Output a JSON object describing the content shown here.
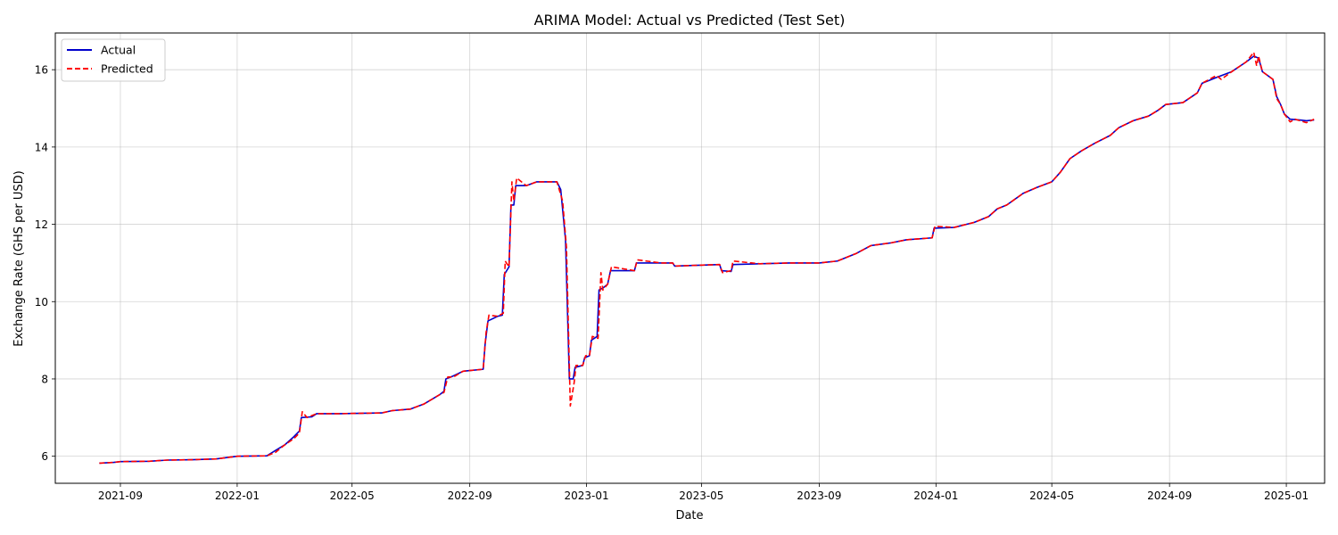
{
  "chart_data": {
    "type": "line",
    "title": "ARIMA Model: Actual vs Predicted (Test Set)",
    "xlabel": "Date",
    "ylabel": "Exchange Rate (GHS per USD)",
    "xlim": [
      "2021-06-25",
      "2025-02-10"
    ],
    "ylim": [
      5.3,
      16.95
    ],
    "x_ticks": [
      "2021-09-01",
      "2022-01-01",
      "2022-05-01",
      "2022-09-01",
      "2023-01-01",
      "2023-05-01",
      "2023-09-01",
      "2024-01-01",
      "2024-05-01",
      "2024-09-01",
      "2025-01-01"
    ],
    "x_tick_labels": [
      "2021-09",
      "2022-01",
      "2022-05",
      "2022-09",
      "2023-01",
      "2023-05",
      "2023-09",
      "2024-01",
      "2024-05",
      "2024-09",
      "2025-01"
    ],
    "y_ticks": [
      6,
      8,
      10,
      12,
      14,
      16
    ],
    "y_tick_labels": [
      "6",
      "8",
      "10",
      "12",
      "14",
      "16"
    ],
    "grid": true,
    "legend_position": "top-left",
    "series": [
      {
        "name": "Actual",
        "color": "#0000cc",
        "style": "solid",
        "points": [
          [
            "2021-08-10",
            5.82
          ],
          [
            "2021-08-25",
            5.84
          ],
          [
            "2021-09-01",
            5.86
          ],
          [
            "2021-10-01",
            5.87
          ],
          [
            "2021-10-20",
            5.9
          ],
          [
            "2021-11-15",
            5.91
          ],
          [
            "2021-12-10",
            5.93
          ],
          [
            "2022-01-01",
            6.0
          ],
          [
            "2022-02-01",
            6.01
          ],
          [
            "2022-02-10",
            6.15
          ],
          [
            "2022-02-20",
            6.3
          ],
          [
            "2022-03-01",
            6.5
          ],
          [
            "2022-03-07",
            6.65
          ],
          [
            "2022-03-09",
            7.0
          ],
          [
            "2022-03-20",
            7.02
          ],
          [
            "2022-03-25",
            7.1
          ],
          [
            "2022-04-15",
            7.1
          ],
          [
            "2022-06-01",
            7.12
          ],
          [
            "2022-06-12",
            7.18
          ],
          [
            "2022-07-01",
            7.22
          ],
          [
            "2022-07-15",
            7.35
          ],
          [
            "2022-08-01",
            7.6
          ],
          [
            "2022-08-05",
            7.68
          ],
          [
            "2022-08-07",
            8.0
          ],
          [
            "2022-08-15",
            8.08
          ],
          [
            "2022-08-25",
            8.2
          ],
          [
            "2022-09-15",
            8.25
          ],
          [
            "2022-09-17",
            8.9
          ],
          [
            "2022-09-20",
            9.5
          ],
          [
            "2022-09-30",
            9.62
          ],
          [
            "2022-10-05",
            9.65
          ],
          [
            "2022-10-07",
            10.7
          ],
          [
            "2022-10-12",
            10.9
          ],
          [
            "2022-10-14",
            12.5
          ],
          [
            "2022-10-17",
            12.5
          ],
          [
            "2022-10-19",
            13.0
          ],
          [
            "2022-10-30",
            13.0
          ],
          [
            "2022-11-10",
            13.1
          ],
          [
            "2022-12-01",
            13.1
          ],
          [
            "2022-12-05",
            12.9
          ],
          [
            "2022-12-10",
            11.6
          ],
          [
            "2022-12-14",
            8.0
          ],
          [
            "2022-12-18",
            8.0
          ],
          [
            "2022-12-20",
            8.3
          ],
          [
            "2022-12-28",
            8.35
          ],
          [
            "2022-12-30",
            8.55
          ],
          [
            "2023-01-04",
            8.6
          ],
          [
            "2023-01-06",
            9.0
          ],
          [
            "2023-01-12",
            9.1
          ],
          [
            "2023-01-14",
            10.3
          ],
          [
            "2023-01-18",
            10.35
          ],
          [
            "2023-01-23",
            10.45
          ],
          [
            "2023-01-26",
            10.8
          ],
          [
            "2023-02-20",
            10.8
          ],
          [
            "2023-02-22",
            11.0
          ],
          [
            "2023-03-20",
            11.0
          ],
          [
            "2023-04-01",
            11.0
          ],
          [
            "2023-04-03",
            10.92
          ],
          [
            "2023-05-20",
            10.96
          ],
          [
            "2023-05-22",
            10.8
          ],
          [
            "2023-06-01",
            10.78
          ],
          [
            "2023-06-03",
            10.96
          ],
          [
            "2023-07-01",
            10.98
          ],
          [
            "2023-08-01",
            11.0
          ],
          [
            "2023-09-01",
            11.0
          ],
          [
            "2023-09-20",
            11.05
          ],
          [
            "2023-10-10",
            11.25
          ],
          [
            "2023-10-25",
            11.45
          ],
          [
            "2023-11-15",
            11.52
          ],
          [
            "2023-12-01",
            11.6
          ],
          [
            "2023-12-28",
            11.65
          ],
          [
            "2023-12-30",
            11.9
          ],
          [
            "2024-01-20",
            11.92
          ],
          [
            "2024-02-10",
            12.05
          ],
          [
            "2024-02-25",
            12.2
          ],
          [
            "2024-03-05",
            12.4
          ],
          [
            "2024-03-15",
            12.5
          ],
          [
            "2024-04-01",
            12.8
          ],
          [
            "2024-04-15",
            12.95
          ],
          [
            "2024-05-01",
            13.1
          ],
          [
            "2024-05-10",
            13.35
          ],
          [
            "2024-05-20",
            13.7
          ],
          [
            "2024-06-01",
            13.9
          ],
          [
            "2024-06-15",
            14.1
          ],
          [
            "2024-07-01",
            14.3
          ],
          [
            "2024-07-10",
            14.5
          ],
          [
            "2024-07-25",
            14.68
          ],
          [
            "2024-08-10",
            14.8
          ],
          [
            "2024-08-20",
            14.95
          ],
          [
            "2024-08-28",
            15.1
          ],
          [
            "2024-09-15",
            15.15
          ],
          [
            "2024-09-30",
            15.4
          ],
          [
            "2024-10-05",
            15.65
          ],
          [
            "2024-10-20",
            15.8
          ],
          [
            "2024-11-05",
            15.95
          ],
          [
            "2024-11-20",
            16.2
          ],
          [
            "2024-11-28",
            16.35
          ],
          [
            "2024-12-03",
            16.3
          ],
          [
            "2024-12-07",
            15.95
          ],
          [
            "2024-12-18",
            15.75
          ],
          [
            "2024-12-22",
            15.3
          ],
          [
            "2024-12-26",
            15.1
          ],
          [
            "2024-12-30",
            14.85
          ],
          [
            "2025-01-05",
            14.72
          ],
          [
            "2025-01-15",
            14.7
          ],
          [
            "2025-01-22",
            14.68
          ],
          [
            "2025-01-30",
            14.7
          ]
        ]
      },
      {
        "name": "Predicted",
        "color": "#ff0000",
        "style": "dashed",
        "points": [
          [
            "2021-08-10",
            5.82
          ],
          [
            "2021-08-25",
            5.84
          ],
          [
            "2021-09-01",
            5.86
          ],
          [
            "2021-10-01",
            5.87
          ],
          [
            "2021-10-20",
            5.9
          ],
          [
            "2021-11-15",
            5.91
          ],
          [
            "2021-12-10",
            5.93
          ],
          [
            "2022-01-01",
            6.0
          ],
          [
            "2022-02-01",
            6.01
          ],
          [
            "2022-02-10",
            6.1
          ],
          [
            "2022-02-20",
            6.3
          ],
          [
            "2022-03-01",
            6.45
          ],
          [
            "2022-03-07",
            6.6
          ],
          [
            "2022-03-10",
            7.15
          ],
          [
            "2022-03-15",
            7.0
          ],
          [
            "2022-03-25",
            7.1
          ],
          [
            "2022-04-15",
            7.1
          ],
          [
            "2022-06-01",
            7.12
          ],
          [
            "2022-06-12",
            7.18
          ],
          [
            "2022-07-01",
            7.22
          ],
          [
            "2022-07-15",
            7.35
          ],
          [
            "2022-08-01",
            7.6
          ],
          [
            "2022-08-05",
            7.65
          ],
          [
            "2022-08-09",
            8.05
          ],
          [
            "2022-08-15",
            8.05
          ],
          [
            "2022-08-25",
            8.2
          ],
          [
            "2022-09-15",
            8.25
          ],
          [
            "2022-09-18",
            9.2
          ],
          [
            "2022-09-21",
            9.65
          ],
          [
            "2022-09-30",
            9.62
          ],
          [
            "2022-10-06",
            9.7
          ],
          [
            "2022-10-08",
            11.05
          ],
          [
            "2022-10-12",
            10.9
          ],
          [
            "2022-10-15",
            13.1
          ],
          [
            "2022-10-17",
            12.6
          ],
          [
            "2022-10-20",
            13.2
          ],
          [
            "2022-10-30",
            13.0
          ],
          [
            "2022-11-10",
            13.1
          ],
          [
            "2022-12-01",
            13.1
          ],
          [
            "2022-12-07",
            12.6
          ],
          [
            "2022-12-11",
            11.4
          ],
          [
            "2022-12-15",
            7.3
          ],
          [
            "2022-12-19",
            7.9
          ],
          [
            "2022-12-21",
            8.35
          ],
          [
            "2022-12-28",
            8.35
          ],
          [
            "2022-12-31",
            8.6
          ],
          [
            "2023-01-04",
            8.6
          ],
          [
            "2023-01-07",
            9.1
          ],
          [
            "2023-01-13",
            9.05
          ],
          [
            "2023-01-16",
            10.75
          ],
          [
            "2023-01-18",
            10.3
          ],
          [
            "2023-01-23",
            10.45
          ],
          [
            "2023-01-27",
            10.9
          ],
          [
            "2023-02-20",
            10.8
          ],
          [
            "2023-02-23",
            11.08
          ],
          [
            "2023-03-20",
            11.0
          ],
          [
            "2023-04-01",
            11.0
          ],
          [
            "2023-04-03",
            10.92
          ],
          [
            "2023-05-20",
            10.96
          ],
          [
            "2023-05-23",
            10.75
          ],
          [
            "2023-06-01",
            10.8
          ],
          [
            "2023-06-03",
            11.05
          ],
          [
            "2023-07-01",
            10.98
          ],
          [
            "2023-08-01",
            11.0
          ],
          [
            "2023-09-01",
            11.0
          ],
          [
            "2023-09-20",
            11.05
          ],
          [
            "2023-10-10",
            11.25
          ],
          [
            "2023-10-25",
            11.45
          ],
          [
            "2023-11-15",
            11.52
          ],
          [
            "2023-12-01",
            11.6
          ],
          [
            "2023-12-28",
            11.65
          ],
          [
            "2023-12-31",
            11.95
          ],
          [
            "2024-01-20",
            11.92
          ],
          [
            "2024-02-10",
            12.05
          ],
          [
            "2024-02-25",
            12.2
          ],
          [
            "2024-03-05",
            12.4
          ],
          [
            "2024-03-15",
            12.5
          ],
          [
            "2024-04-01",
            12.8
          ],
          [
            "2024-04-15",
            12.95
          ],
          [
            "2024-05-01",
            13.1
          ],
          [
            "2024-05-10",
            13.35
          ],
          [
            "2024-05-20",
            13.7
          ],
          [
            "2024-06-01",
            13.9
          ],
          [
            "2024-06-15",
            14.1
          ],
          [
            "2024-07-01",
            14.3
          ],
          [
            "2024-07-10",
            14.5
          ],
          [
            "2024-07-25",
            14.68
          ],
          [
            "2024-08-10",
            14.8
          ],
          [
            "2024-08-20",
            14.95
          ],
          [
            "2024-08-28",
            15.1
          ],
          [
            "2024-09-15",
            15.15
          ],
          [
            "2024-09-30",
            15.4
          ],
          [
            "2024-10-05",
            15.65
          ],
          [
            "2024-10-20",
            15.85
          ],
          [
            "2024-10-25",
            15.75
          ],
          [
            "2024-11-05",
            15.95
          ],
          [
            "2024-11-20",
            16.2
          ],
          [
            "2024-11-28",
            16.45
          ],
          [
            "2024-12-01",
            16.1
          ],
          [
            "2024-12-03",
            16.35
          ],
          [
            "2024-12-07",
            15.95
          ],
          [
            "2024-12-18",
            15.75
          ],
          [
            "2024-12-22",
            15.25
          ],
          [
            "2024-12-26",
            15.1
          ],
          [
            "2024-12-30",
            14.85
          ],
          [
            "2025-01-05",
            14.65
          ],
          [
            "2025-01-10",
            14.72
          ],
          [
            "2025-01-22",
            14.63
          ],
          [
            "2025-01-30",
            14.72
          ]
        ]
      }
    ]
  }
}
